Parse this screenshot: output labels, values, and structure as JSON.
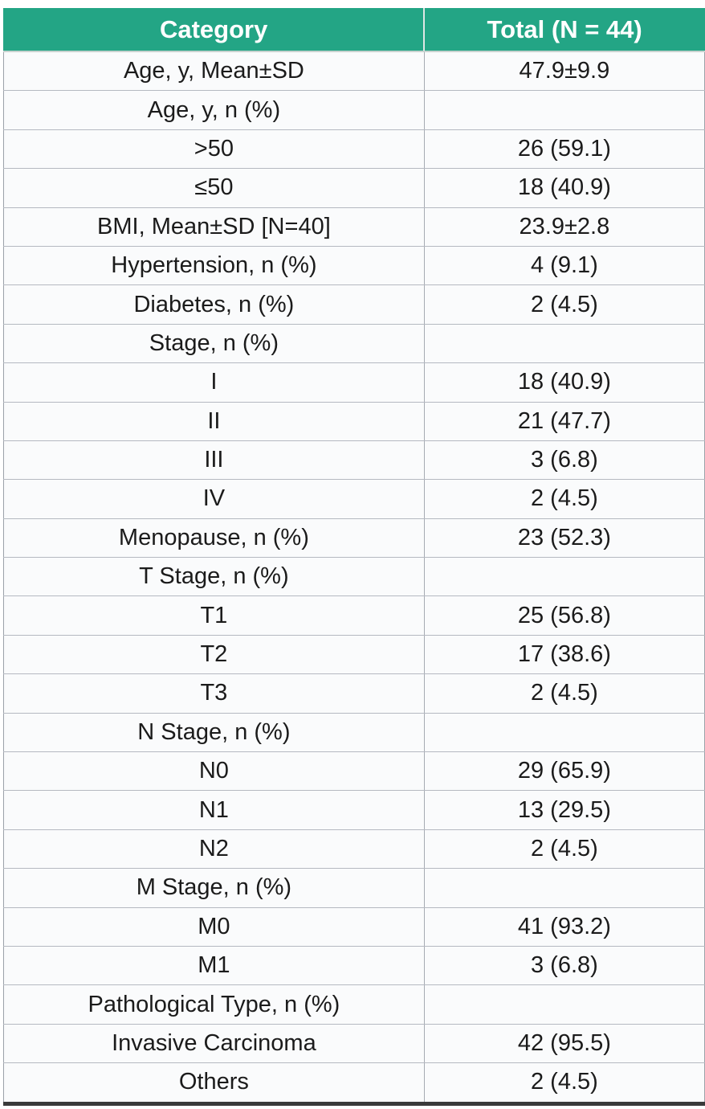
{
  "chart_data": {
    "type": "table",
    "title": "",
    "columns": [
      "Category",
      "Total (N = 44)"
    ],
    "rows": [
      {
        "category": "Age, y, Mean±SD",
        "total": "47.9±9.9"
      },
      {
        "category": "Age, y, n (%)",
        "total": ""
      },
      {
        "category": ">50",
        "total": "26 (59.1)"
      },
      {
        "category": "≤50",
        "total": "18 (40.9)"
      },
      {
        "category": "BMI, Mean±SD [N=40]",
        "total": "23.9±2.8"
      },
      {
        "category": "Hypertension, n (%)",
        "total": "4 (9.1)"
      },
      {
        "category": "Diabetes, n (%)",
        "total": "2 (4.5)"
      },
      {
        "category": "Stage, n (%)",
        "total": ""
      },
      {
        "category": "I",
        "total": "18 (40.9)"
      },
      {
        "category": "II",
        "total": "21 (47.7)"
      },
      {
        "category": "III",
        "total": "3 (6.8)"
      },
      {
        "category": "IV",
        "total": "2 (4.5)"
      },
      {
        "category": "Menopause, n (%)",
        "total": "23 (52.3)"
      },
      {
        "category": "T Stage, n (%)",
        "total": ""
      },
      {
        "category": "T1",
        "total": "25 (56.8)"
      },
      {
        "category": "T2",
        "total": "17 (38.6)"
      },
      {
        "category": "T3",
        "total": "2 (4.5)"
      },
      {
        "category": "N Stage, n (%)",
        "total": ""
      },
      {
        "category": "N0",
        "total": "29 (65.9)"
      },
      {
        "category": "N1",
        "total": "13 (29.5)"
      },
      {
        "category": "N2",
        "total": "2 (4.5)"
      },
      {
        "category": "M Stage, n (%)",
        "total": ""
      },
      {
        "category": "M0",
        "total": "41 (93.2)"
      },
      {
        "category": "M1",
        "total": "3 (6.8)"
      },
      {
        "category": "Pathological Type, n (%)",
        "total": ""
      },
      {
        "category": "Invasive Carcinoma",
        "total": "42 (95.5)"
      },
      {
        "category": "Others",
        "total": "2 (4.5)"
      }
    ],
    "layout": {
      "legend": "none",
      "grid": "on",
      "header_bg_color": "#23a585",
      "header_text_color": "#ffffff",
      "cell_bg_color": "#fafbfc",
      "row_border_color": "#b5b9c1",
      "bottom_border_color": "#3a3a3a",
      "text_color": "#1b1b1b"
    }
  }
}
